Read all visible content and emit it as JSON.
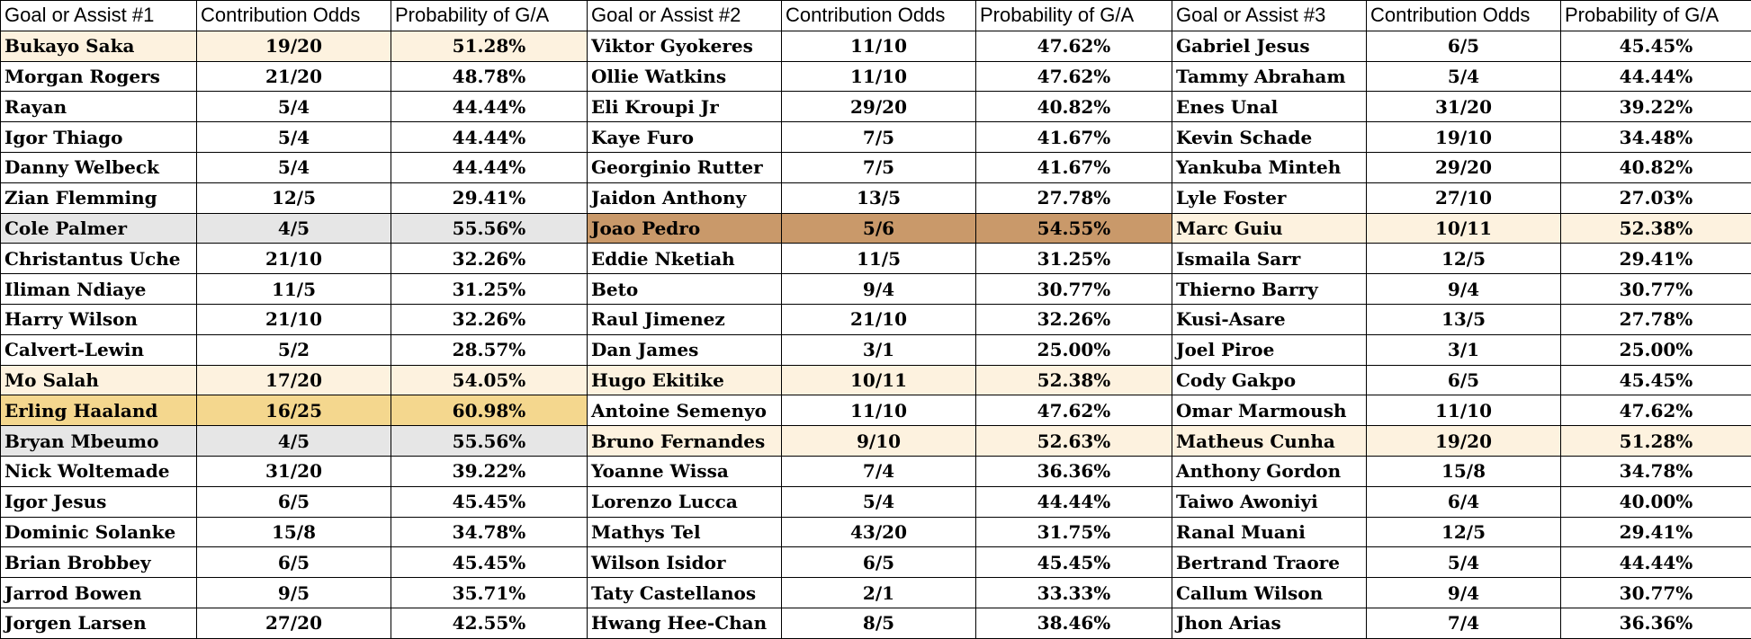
{
  "headers": [
    "Goal or Assist #1",
    "Contribution Odds",
    "Probability of G/A",
    "Goal or Assist #2",
    "Contribution Odds",
    "Probability of G/A",
    "Goal or Assist #3",
    "Contribution Odds",
    "Probability of G/A"
  ],
  "colors": {
    "light": "#fdf2df",
    "gold": "#f4d78e",
    "gray": "#e6e6e6",
    "brown": "#c9996a",
    "none": "#ffffff"
  },
  "rows": [
    [
      [
        "Bukayo Saka",
        "19/20",
        "51.28%",
        "light"
      ],
      [
        "Viktor Gyokeres",
        "11/10",
        "47.62%",
        "none"
      ],
      [
        "Gabriel Jesus",
        "6/5",
        "45.45%",
        "none"
      ]
    ],
    [
      [
        "Morgan Rogers",
        "21/20",
        "48.78%",
        "none"
      ],
      [
        "Ollie Watkins",
        "11/10",
        "47.62%",
        "none"
      ],
      [
        "Tammy Abraham",
        "5/4",
        "44.44%",
        "none"
      ]
    ],
    [
      [
        "Rayan",
        "5/4",
        "44.44%",
        "none"
      ],
      [
        "Eli Kroupi Jr",
        "29/20",
        "40.82%",
        "none"
      ],
      [
        "Enes Unal",
        "31/20",
        "39.22%",
        "none"
      ]
    ],
    [
      [
        "Igor Thiago",
        "5/4",
        "44.44%",
        "none"
      ],
      [
        "Kaye Furo",
        "7/5",
        "41.67%",
        "none"
      ],
      [
        "Kevin Schade",
        "19/10",
        "34.48%",
        "none"
      ]
    ],
    [
      [
        "Danny Welbeck",
        "5/4",
        "44.44%",
        "none"
      ],
      [
        "Georginio Rutter",
        "7/5",
        "41.67%",
        "none"
      ],
      [
        "Yankuba Minteh",
        "29/20",
        "40.82%",
        "none"
      ]
    ],
    [
      [
        "Zian Flemming",
        "12/5",
        "29.41%",
        "none"
      ],
      [
        "Jaidon Anthony",
        "13/5",
        "27.78%",
        "none"
      ],
      [
        "Lyle Foster",
        "27/10",
        "27.03%",
        "none"
      ]
    ],
    [
      [
        "Cole Palmer",
        "4/5",
        "55.56%",
        "gray"
      ],
      [
        "Joao Pedro",
        "5/6",
        "54.55%",
        "brown"
      ],
      [
        "Marc Guiu",
        "10/11",
        "52.38%",
        "light"
      ]
    ],
    [
      [
        "Christantus Uche",
        "21/10",
        "32.26%",
        "none"
      ],
      [
        "Eddie Nketiah",
        "11/5",
        "31.25%",
        "none"
      ],
      [
        "Ismaila Sarr",
        "12/5",
        "29.41%",
        "none"
      ]
    ],
    [
      [
        "Iliman Ndiaye",
        "11/5",
        "31.25%",
        "none"
      ],
      [
        "Beto",
        "9/4",
        "30.77%",
        "none"
      ],
      [
        "Thierno Barry",
        "9/4",
        "30.77%",
        "none"
      ]
    ],
    [
      [
        "Harry Wilson",
        "21/10",
        "32.26%",
        "none"
      ],
      [
        "Raul Jimenez",
        "21/10",
        "32.26%",
        "none"
      ],
      [
        "Kusi-Asare",
        "13/5",
        "27.78%",
        "none"
      ]
    ],
    [
      [
        "Calvert-Lewin",
        "5/2",
        "28.57%",
        "none"
      ],
      [
        "Dan James",
        "3/1",
        "25.00%",
        "none"
      ],
      [
        "Joel Piroe",
        "3/1",
        "25.00%",
        "none"
      ]
    ],
    [
      [
        "Mo Salah",
        "17/20",
        "54.05%",
        "light"
      ],
      [
        "Hugo Ekitike",
        "10/11",
        "52.38%",
        "light"
      ],
      [
        "Cody Gakpo",
        "6/5",
        "45.45%",
        "none"
      ]
    ],
    [
      [
        "Erling Haaland",
        "16/25",
        "60.98%",
        "gold"
      ],
      [
        "Antoine Semenyo",
        "11/10",
        "47.62%",
        "none"
      ],
      [
        "Omar Marmoush",
        "11/10",
        "47.62%",
        "none"
      ]
    ],
    [
      [
        "Bryan Mbeumo",
        "4/5",
        "55.56%",
        "gray"
      ],
      [
        "Bruno Fernandes",
        "9/10",
        "52.63%",
        "light"
      ],
      [
        "Matheus Cunha",
        "19/20",
        "51.28%",
        "light"
      ]
    ],
    [
      [
        "Nick Woltemade",
        "31/20",
        "39.22%",
        "none"
      ],
      [
        "Yoanne Wissa",
        "7/4",
        "36.36%",
        "none"
      ],
      [
        "Anthony Gordon",
        "15/8",
        "34.78%",
        "none"
      ]
    ],
    [
      [
        "Igor Jesus",
        "6/5",
        "45.45%",
        "none"
      ],
      [
        "Lorenzo Lucca",
        "5/4",
        "44.44%",
        "none"
      ],
      [
        "Taiwo Awoniyi",
        "6/4",
        "40.00%",
        "none"
      ]
    ],
    [
      [
        "Dominic Solanke",
        "15/8",
        "34.78%",
        "none"
      ],
      [
        "Mathys Tel",
        "43/20",
        "31.75%",
        "none"
      ],
      [
        "Ranal Muani",
        "12/5",
        "29.41%",
        "none"
      ]
    ],
    [
      [
        "Brian Brobbey",
        "6/5",
        "45.45%",
        "none"
      ],
      [
        "Wilson Isidor",
        "6/5",
        "45.45%",
        "none"
      ],
      [
        "Bertrand Traore",
        "5/4",
        "44.44%",
        "none"
      ]
    ],
    [
      [
        "Jarrod Bowen",
        "9/5",
        "35.71%",
        "none"
      ],
      [
        "Taty Castellanos",
        "2/1",
        "33.33%",
        "none"
      ],
      [
        "Callum Wilson",
        "9/4",
        "30.77%",
        "none"
      ]
    ],
    [
      [
        "Jorgen Larsen",
        "27/20",
        "42.55%",
        "none"
      ],
      [
        "Hwang Hee-Chan",
        "8/5",
        "38.46%",
        "none"
      ],
      [
        "Jhon Arias",
        "7/4",
        "36.36%",
        "none"
      ]
    ]
  ]
}
